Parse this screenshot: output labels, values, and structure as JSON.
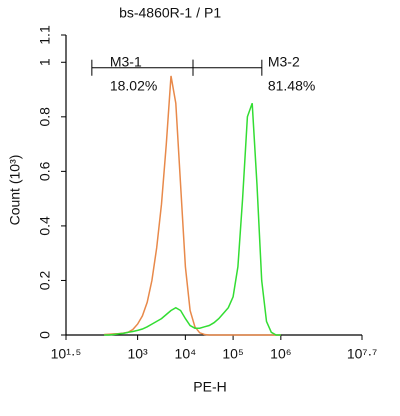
{
  "chart_data": {
    "type": "line",
    "title": "bs-4860R-1 /",
    "gate_title": "P1",
    "gate_title_color": "#22cc22",
    "x_label": "PE-H",
    "y_label": "Count (10³)",
    "xscale": "log",
    "xlim": [
      31.62,
      50118723
    ],
    "xticks": [
      {
        "value": 31.62,
        "label": "10¹·⁵"
      },
      {
        "value": 1000,
        "label": "10³"
      },
      {
        "value": 10000,
        "label": "10⁴"
      },
      {
        "value": 100000,
        "label": "10⁵"
      },
      {
        "value": 1000000,
        "label": "10⁶"
      },
      {
        "value": 50118723,
        "label": "10⁷·⁷"
      }
    ],
    "ylim": [
      0,
      1.1
    ],
    "yticks": [
      0,
      0.2,
      0.4,
      0.6,
      0.8,
      1,
      1.1
    ],
    "x": [
      200,
      251,
      316,
      398,
      501,
      631,
      794,
      1000,
      1259,
      1585,
      1995,
      2512,
      3162,
      3981,
      5012,
      6310,
      7943,
      10000,
      12589,
      15849,
      19953,
      25119,
      31623,
      39811,
      50119,
      63096,
      79433,
      100000,
      125893,
      158489,
      199526,
      251189,
      316228,
      398107,
      501187,
      630957,
      794328,
      1000000
    ],
    "series": [
      {
        "color": "#e8894a",
        "values": [
          0.002,
          0.003,
          0.004,
          0.005,
          0.007,
          0.01,
          0.02,
          0.04,
          0.07,
          0.12,
          0.2,
          0.32,
          0.48,
          0.7,
          0.95,
          0.85,
          0.55,
          0.25,
          0.09,
          0.03,
          0.008,
          0.002,
          0,
          0,
          0,
          0,
          0,
          0,
          0,
          0,
          0,
          0,
          0,
          0,
          0,
          0,
          0,
          0
        ]
      },
      {
        "color": "#33dd33",
        "values": [
          0,
          0,
          0.002,
          0.004,
          0.006,
          0.01,
          0.013,
          0.017,
          0.022,
          0.03,
          0.04,
          0.05,
          0.06,
          0.075,
          0.09,
          0.1,
          0.09,
          0.06,
          0.035,
          0.025,
          0.025,
          0.03,
          0.035,
          0.045,
          0.06,
          0.08,
          0.1,
          0.14,
          0.25,
          0.5,
          0.8,
          0.85,
          0.55,
          0.2,
          0.05,
          0.01,
          0,
          0
        ]
      }
    ],
    "gates": [
      {
        "name": "M3-1",
        "percent": "18.02%",
        "range": [
          110,
          14454
        ],
        "y": 0.98
      },
      {
        "name": "M3-2",
        "percent": "81.48%",
        "range": [
          14454,
          400000
        ],
        "y": 0.98
      }
    ]
  }
}
